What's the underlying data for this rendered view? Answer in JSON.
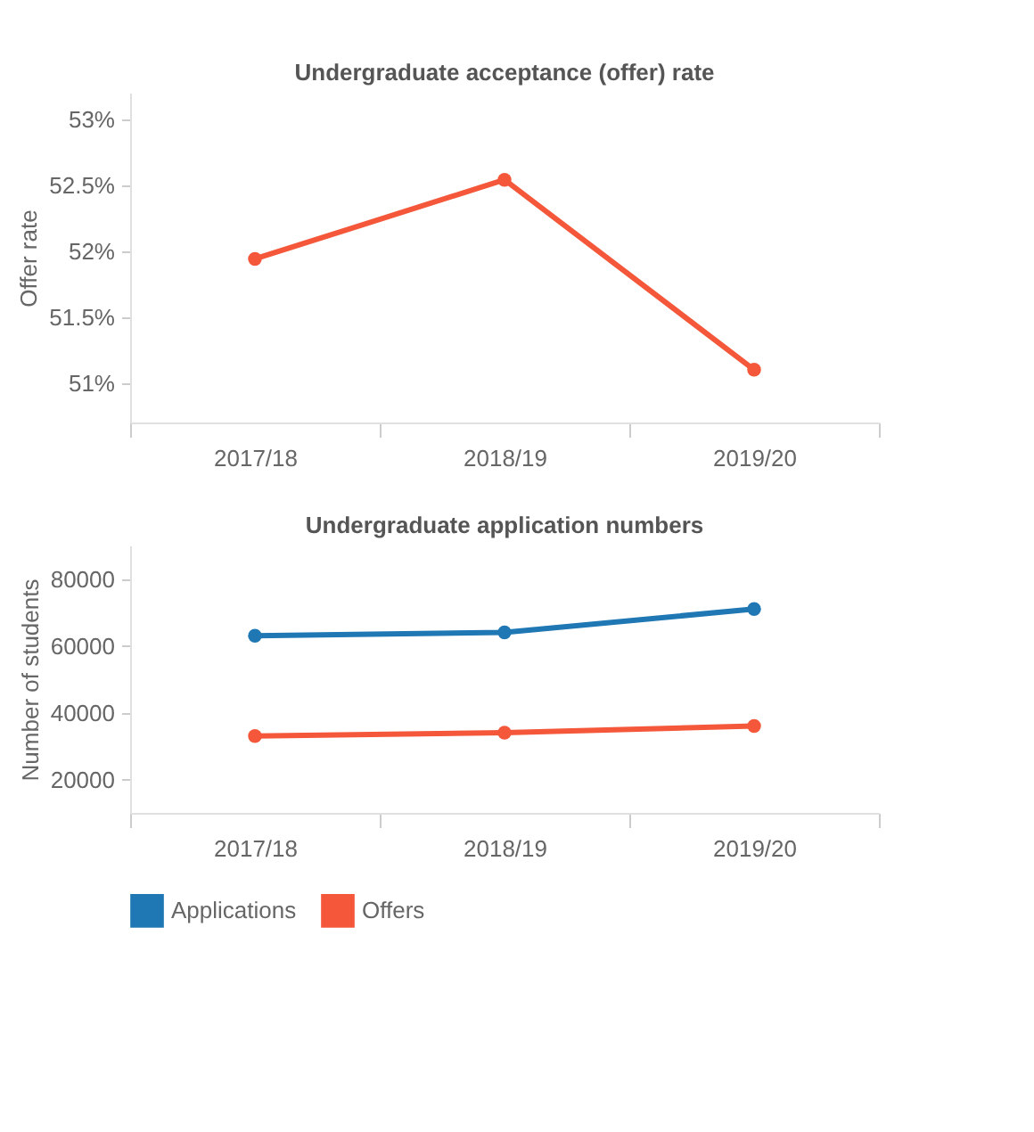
{
  "chart_data": [
    {
      "type": "line",
      "title": "Undergraduate acceptance (offer) rate",
      "ylabel": "Offer rate",
      "categories": [
        "2017/18",
        "2018/19",
        "2019/20"
      ],
      "series": [
        {
          "color": "#f4573a",
          "values": [
            51.94,
            52.54,
            51.1
          ]
        }
      ],
      "ylim": [
        50.7,
        53.2
      ],
      "yticks": [
        {
          "value": 51,
          "label": "51%"
        },
        {
          "value": 51.5,
          "label": "51.5%"
        },
        {
          "value": 52,
          "label": "52%"
        },
        {
          "value": 52.5,
          "label": "52.5%"
        },
        {
          "value": 53,
          "label": "53%"
        }
      ],
      "grid": false,
      "legend": false,
      "marker": "circle",
      "line_style": "solid"
    },
    {
      "type": "line",
      "title": "Undergraduate application numbers",
      "ylabel": "Number of students",
      "categories": [
        "2017/18",
        "2018/19",
        "2019/20"
      ],
      "series": [
        {
          "name": "Applications",
          "color": "#1f77b4",
          "values": [
            63000,
            64000,
            71000
          ]
        },
        {
          "name": "Offers",
          "color": "#f4573a",
          "values": [
            33000,
            34000,
            36000
          ]
        }
      ],
      "ylim": [
        10000,
        90000
      ],
      "yticks": [
        20000,
        40000,
        60000,
        80000
      ],
      "grid": false,
      "legend": "bottom",
      "marker": "circle",
      "line_style": "solid"
    }
  ]
}
